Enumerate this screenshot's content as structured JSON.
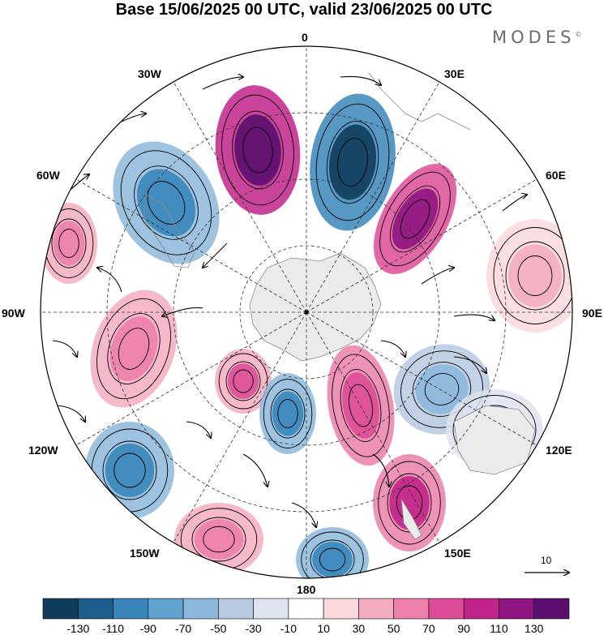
{
  "title": "Base 15/06/2025 00 UTC, valid 23/06/2025 00 UTC",
  "brand": {
    "name": "MODES",
    "mark": "©"
  },
  "longitude_labels": {
    "lon_0": "0",
    "lon_30e": "30E",
    "lon_60e": "60E",
    "lon_90e": "90E",
    "lon_120e": "120E",
    "lon_150e": "150E",
    "lon_180": "180",
    "lon_150w": "150W",
    "lon_120w": "120W",
    "lon_90w": "90W",
    "lon_60w": "60W",
    "lon_30w": "30W"
  },
  "reference_vector": {
    "label": "10"
  },
  "colorbar": {
    "colors": [
      "#0f3c5a",
      "#1d5f8c",
      "#3a86bb",
      "#60a3cf",
      "#8cb8dc",
      "#b8c9e2",
      "#dfe3ef",
      "#ffffff",
      "#fad8db",
      "#f3adc0",
      "#ec7fab",
      "#dd4c98",
      "#c1238a",
      "#8e157f",
      "#5a0f70"
    ],
    "labels": [
      "-130",
      "-110",
      "-90",
      "-70",
      "-50",
      "-30",
      "-10",
      "10",
      "30",
      "50",
      "70",
      "90",
      "110",
      "130"
    ]
  },
  "projection": "polar stereographic, south pole centered",
  "anomaly_cells": [
    {
      "id": "c1",
      "fill": "#c1238a",
      "core": "#5a0f70",
      "level": "strong-positive"
    },
    {
      "id": "c2",
      "fill": "#3a86bb",
      "core": "#0f3c5a",
      "level": "strong-negative"
    },
    {
      "id": "c3",
      "fill": "#dd4c98",
      "core": "#8e157f",
      "level": "strong-positive"
    },
    {
      "id": "c4",
      "fill": "#8cb8dc",
      "core": "#3a86bb",
      "level": "negative"
    },
    {
      "id": "c5",
      "fill": "#f3adc0",
      "core": "#ec7fab",
      "level": "positive"
    },
    {
      "id": "c6",
      "fill": "#fad8db",
      "core": "#f3adc0",
      "level": "weak-positive"
    },
    {
      "id": "c7",
      "fill": "#f3adc0",
      "core": "#ec7fab",
      "level": "positive"
    },
    {
      "id": "c8",
      "fill": "#f3adc0",
      "core": "#dd4c98",
      "level": "positive"
    },
    {
      "id": "c9",
      "fill": "#8cb8dc",
      "core": "#3a86bb",
      "level": "negative"
    },
    {
      "id": "c10",
      "fill": "#ec7fab",
      "core": "#dd4c98",
      "level": "positive"
    },
    {
      "id": "c11",
      "fill": "#b8c9e2",
      "core": "#8cb8dc",
      "level": "weak-negative"
    },
    {
      "id": "c12",
      "fill": "#ec7fab",
      "core": "#c1238a",
      "level": "positive"
    },
    {
      "id": "c13",
      "fill": "#8cb8dc",
      "core": "#3a86bb",
      "level": "negative"
    },
    {
      "id": "c14",
      "fill": "#f3adc0",
      "core": "#ec7fab",
      "level": "positive"
    },
    {
      "id": "c15",
      "fill": "#8cb8dc",
      "core": "#3a86bb",
      "level": "negative"
    },
    {
      "id": "c16",
      "fill": "#dfe3ef",
      "core": "#b8c9e2",
      "level": "weak-negative"
    }
  ]
}
